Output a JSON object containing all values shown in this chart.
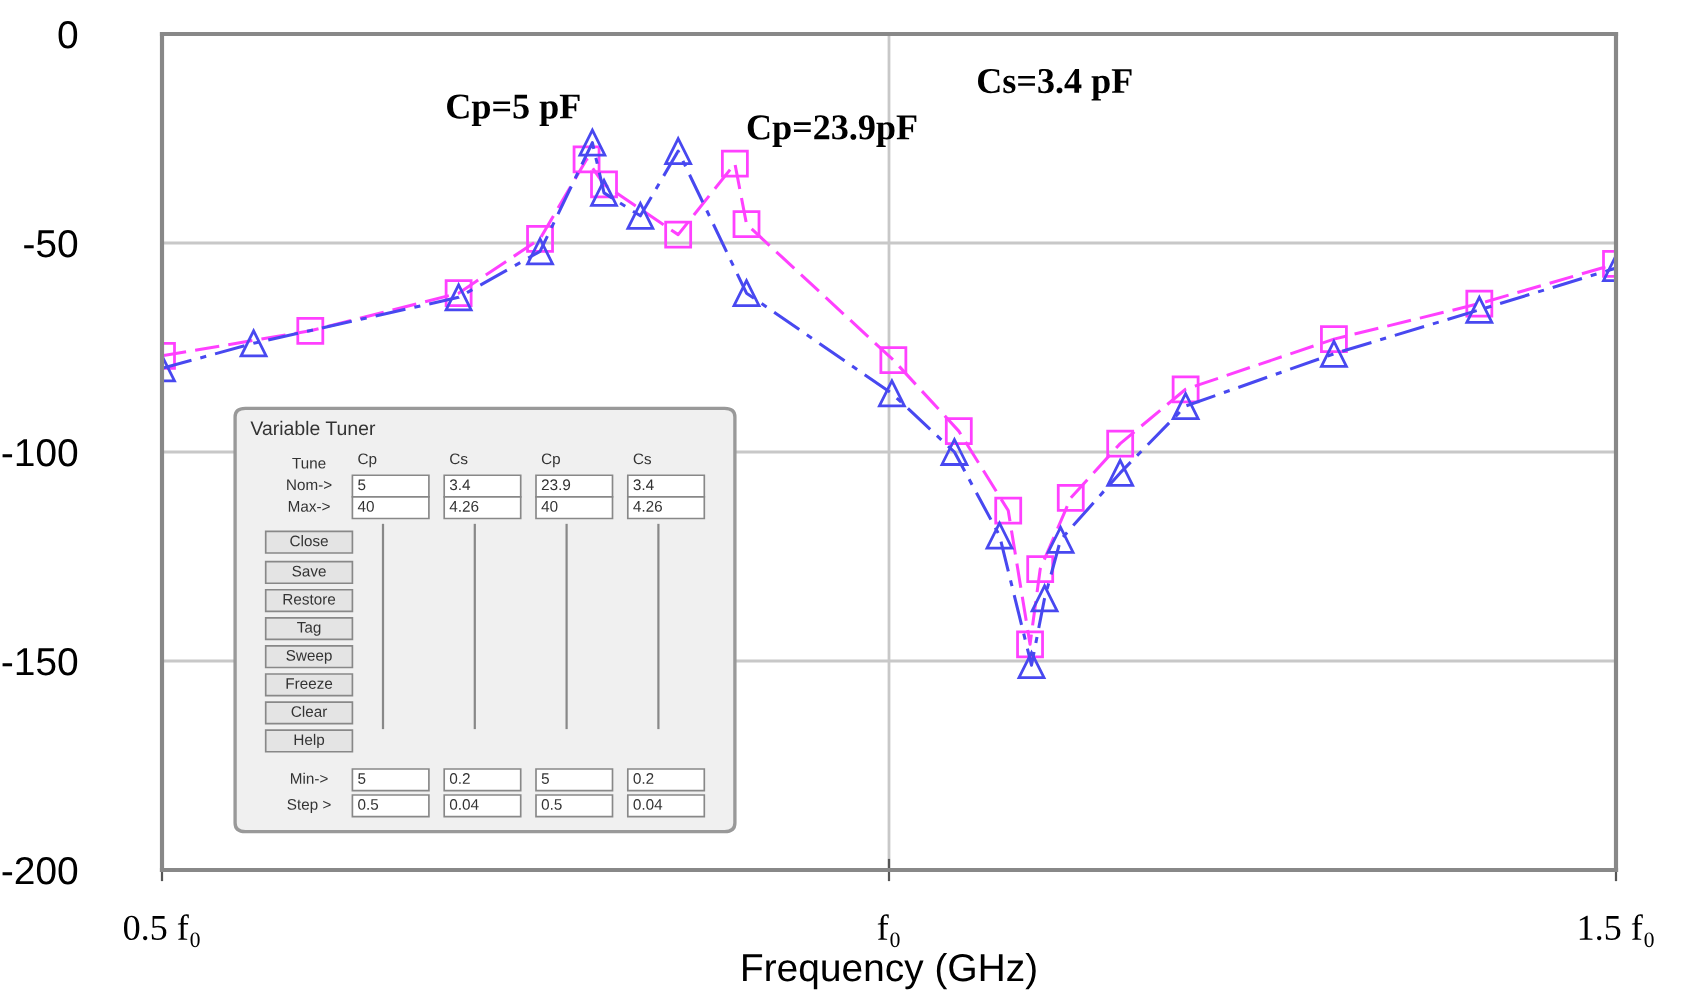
{
  "chart_data": [
    {
      "type": "line",
      "xlabel": "Frequency (GHz)",
      "xlim": [
        0.5,
        1.5
      ],
      "ylim": [
        -200,
        0
      ],
      "xticks": [
        {
          "value": 0.5,
          "label": "0.5 f₀"
        },
        {
          "value": 1.0,
          "label": "f₀"
        },
        {
          "value": 1.5,
          "label": "1.5 f₀"
        }
      ],
      "yticks": [
        0,
        -50,
        -100,
        -150,
        -200
      ],
      "grid": true,
      "legend": false,
      "series": [
        {
          "color": "#ff40ff",
          "marker": "square",
          "line_style": "dashed",
          "x": [
            0.5,
            0.602,
            0.704,
            0.76,
            0.792,
            0.804,
            0.855,
            0.894,
            0.902,
            1.003,
            1.048,
            1.082,
            1.097,
            1.104,
            1.125,
            1.159,
            1.204,
            1.306,
            1.406,
            1.5
          ],
          "values": [
            -77,
            -71,
            -62,
            -49,
            -30,
            -36,
            -48,
            -31,
            -45.5,
            -78,
            -95,
            -114,
            -146,
            -128,
            -111,
            -98,
            -85,
            -73,
            -64.5,
            -55
          ]
        },
        {
          "color": "#4848f0",
          "marker": "triangle",
          "line_style": "dashdot",
          "x": [
            0.5,
            0.563,
            0.704,
            0.76,
            0.796,
            0.804,
            0.829,
            0.855,
            0.902,
            1.002,
            1.045,
            1.076,
            1.098,
            1.107,
            1.118,
            1.159,
            1.204,
            1.306,
            1.406,
            1.5
          ],
          "values": [
            -80,
            -74,
            -63,
            -52,
            -26,
            -38,
            -43.5,
            -28,
            -62,
            -86,
            -100,
            -120,
            -151,
            -135,
            -121,
            -105,
            -89,
            -76.5,
            -66,
            -56
          ]
        }
      ],
      "annotations": [
        {
          "text": "Cp=5 pF",
          "x": 0.796,
          "y": -26
        },
        {
          "text": "Cp=23.9pF",
          "x": 0.894,
          "y": -31
        },
        "Cs=3.4 pF"
      ]
    },
    {
      "type": "other",
      "title": "Variable Tuner",
      "annotations": [
        "Tune",
        "Nom->",
        "Max->",
        "Close",
        "Save",
        "Restore",
        "Tag",
        "Sweep",
        "Freeze",
        "Clear",
        "Help",
        "Min->",
        "Step >",
        "Cp",
        "5",
        "40",
        "5",
        "0.5",
        "Cs",
        "3.4",
        "4.26",
        "0.2",
        "0.04",
        "Cp",
        "23.9",
        "40",
        "5",
        "0.5",
        "Cs",
        "3.4",
        "4.26",
        "0.2",
        "0.04"
      ]
    }
  ]
}
